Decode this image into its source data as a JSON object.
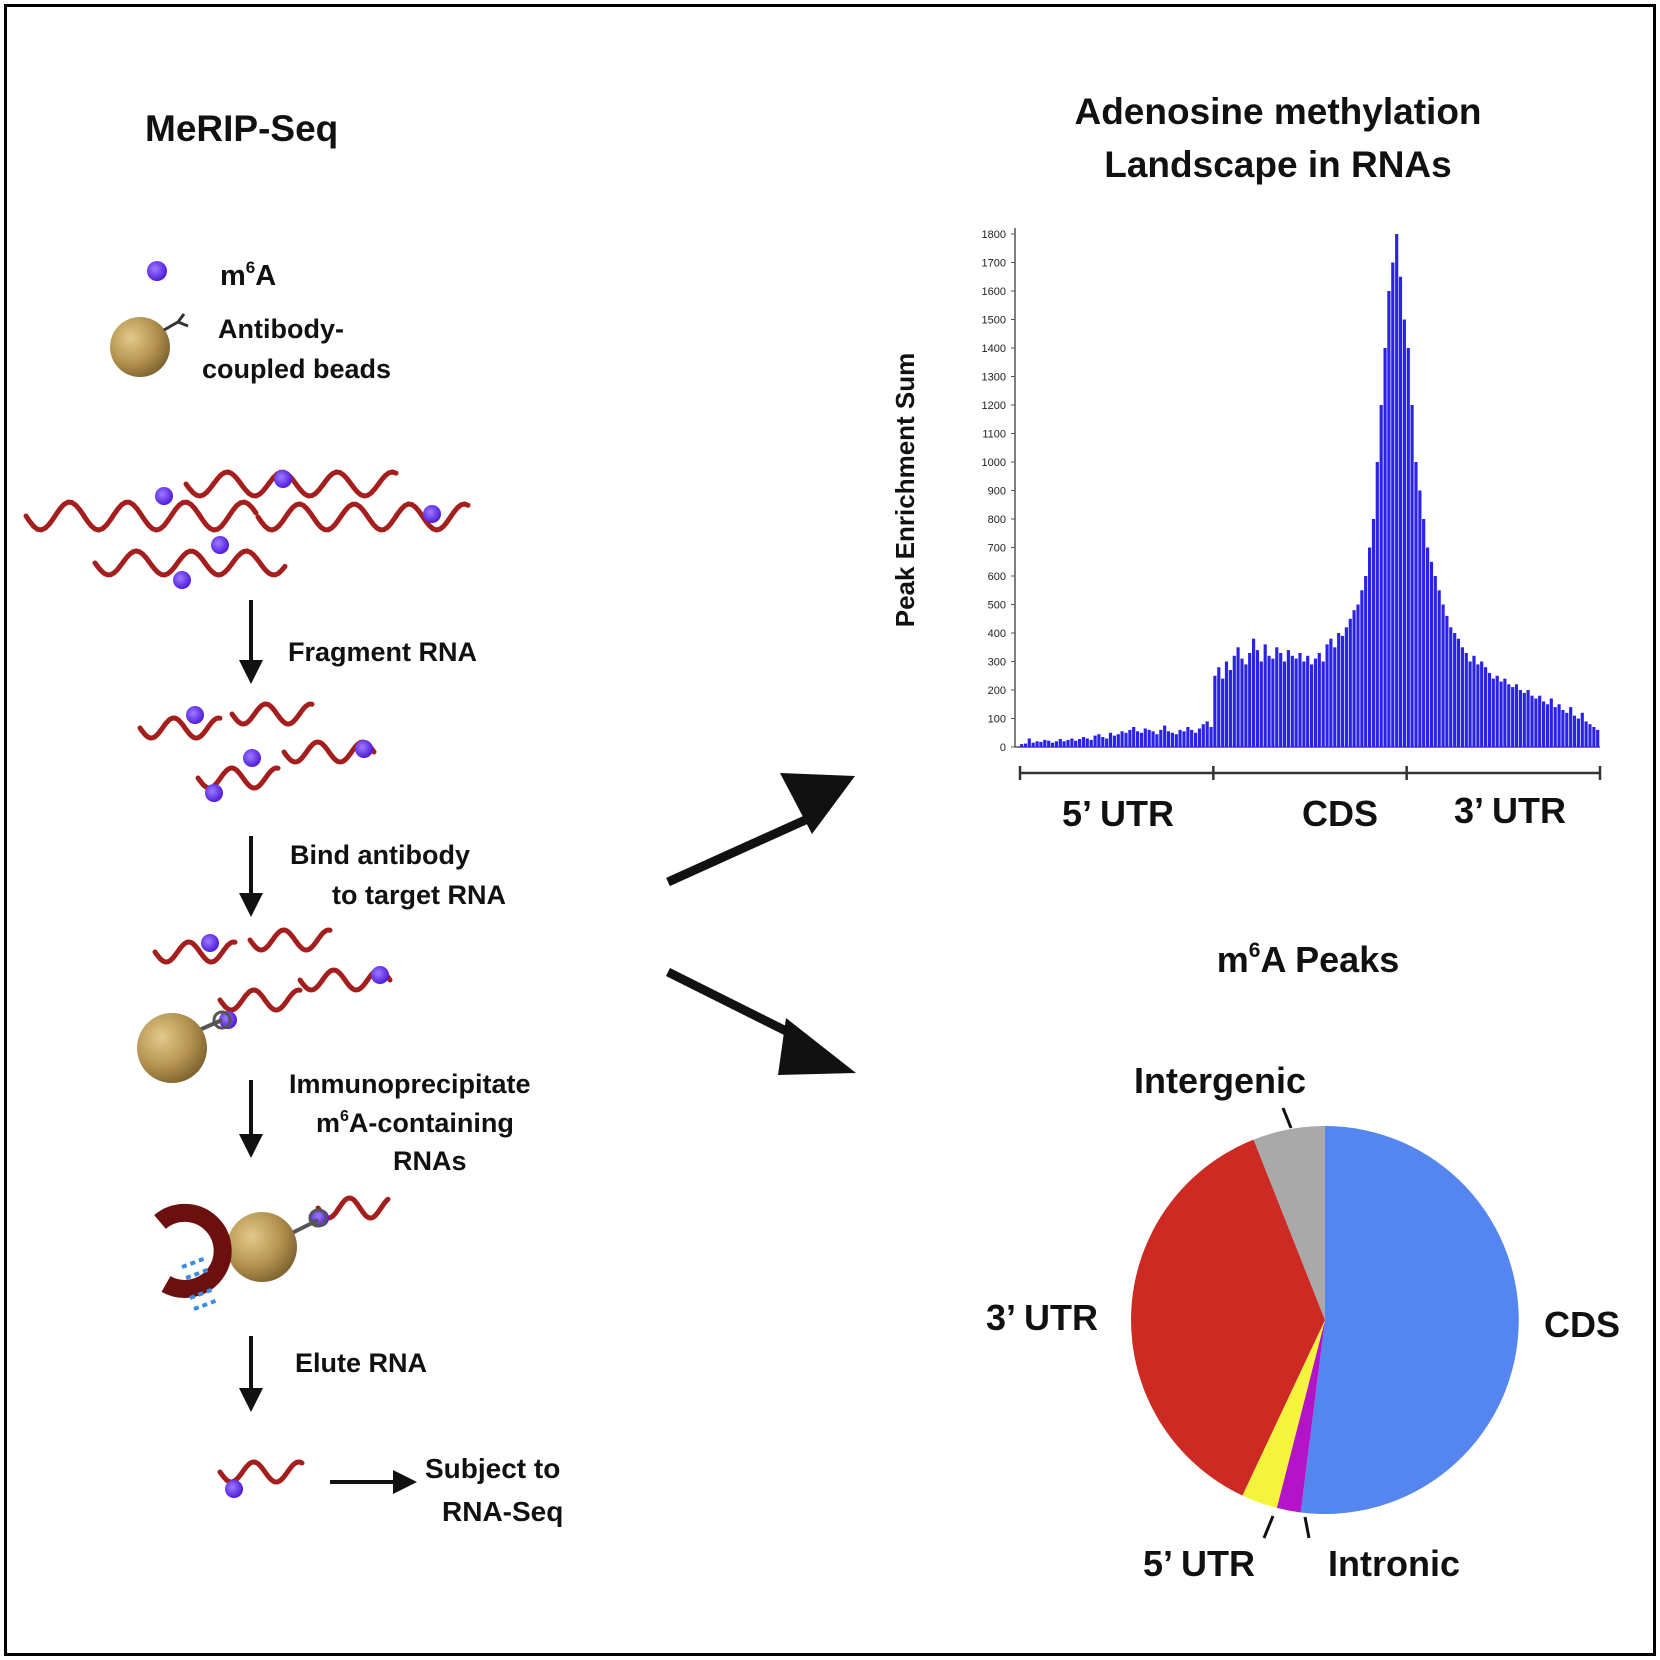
{
  "left_panel": {
    "title": "MeRIP-Seq",
    "legend": {
      "m6a_prefix": "m",
      "m6a_sup": "6",
      "m6a_suffix": "A",
      "beads_line1": "Antibody-",
      "beads_line2": "coupled beads"
    },
    "steps": {
      "fragment": "Fragment RNA",
      "bind_line1": "Bind antibody",
      "bind_line2": "to target RNA",
      "ip_line1": "Immunoprecipitate",
      "ip_line2_prefix": "m",
      "ip_line2_sup": "6",
      "ip_line2_suffix": "A-containing",
      "ip_line3": "RNAs",
      "elute": "Elute RNA",
      "subject_line1": "Subject to",
      "subject_line2": "RNA-Seq"
    }
  },
  "right_top": {
    "title_line1": "Adenosine methylation",
    "title_line2": "Landscape in RNAs",
    "region_labels": [
      "5’ UTR",
      "CDS",
      "3’ UTR"
    ]
  },
  "right_bottom": {
    "title_prefix": "m",
    "title_sup": "6",
    "title_suffix": "A Peaks"
  },
  "colors": {
    "rna": "#a51e1e",
    "m6a": "#6a2bf0",
    "bead": "#b49350",
    "bar": "#2a22e6",
    "magnet": "#6b0f0f"
  },
  "chart_data": [
    {
      "type": "bar",
      "title": "",
      "xlabel": "",
      "ylabel": "Peak Enrichment Sum",
      "ylim": [
        0,
        1800
      ],
      "yticks": [
        0,
        100,
        200,
        300,
        400,
        500,
        600,
        700,
        800,
        900,
        1000,
        1100,
        1200,
        1300,
        1400,
        1500,
        1600,
        1700,
        1800
      ],
      "regions": [
        "5’ UTR",
        "CDS",
        "3’ UTR"
      ],
      "grid": false,
      "x": [
        0.0,
        0.02,
        0.04,
        0.06,
        0.08,
        0.1,
        0.12,
        0.14,
        0.16,
        0.18,
        0.2,
        0.22,
        0.24,
        0.26,
        0.28,
        0.3,
        0.32,
        0.34,
        0.36,
        0.38,
        0.4,
        0.42,
        0.44,
        0.46,
        0.48,
        0.5,
        0.52,
        0.54,
        0.56,
        0.58,
        0.6,
        0.62,
        0.64,
        0.66,
        0.68,
        0.7,
        0.72,
        0.74,
        0.76,
        0.78,
        0.8,
        0.82,
        0.84,
        0.86,
        0.88,
        0.9,
        0.92,
        0.94,
        0.96,
        0.98,
        1.0,
        1.02,
        1.04,
        1.06,
        1.08,
        1.1,
        1.12,
        1.14,
        1.16,
        1.18,
        1.2,
        1.22,
        1.24,
        1.26,
        1.28,
        1.3,
        1.32,
        1.34,
        1.36,
        1.38,
        1.4,
        1.42,
        1.44,
        1.46,
        1.48,
        1.5,
        1.52,
        1.54,
        1.56,
        1.58,
        1.6,
        1.62,
        1.64,
        1.66,
        1.68,
        1.7,
        1.72,
        1.74,
        1.76,
        1.78,
        1.8,
        1.82,
        1.84,
        1.86,
        1.88,
        1.9,
        1.92,
        1.94,
        1.96,
        1.98,
        2.0,
        2.02,
        2.04,
        2.06,
        2.08,
        2.1,
        2.12,
        2.14,
        2.16,
        2.18,
        2.2,
        2.22,
        2.24,
        2.26,
        2.28,
        2.3,
        2.32,
        2.34,
        2.36,
        2.38,
        2.4,
        2.42,
        2.44,
        2.46,
        2.48,
        2.5,
        2.52,
        2.54,
        2.56,
        2.58,
        2.6,
        2.62,
        2.64,
        2.66,
        2.68,
        2.7,
        2.72,
        2.74,
        2.76,
        2.78,
        2.8,
        2.82,
        2.84,
        2.86,
        2.88,
        2.9,
        2.92,
        2.94,
        2.96,
        2.98
      ],
      "values": [
        10,
        12,
        30,
        15,
        20,
        18,
        25,
        22,
        15,
        20,
        28,
        20,
        25,
        30,
        22,
        28,
        35,
        30,
        25,
        40,
        45,
        35,
        30,
        50,
        40,
        45,
        55,
        50,
        60,
        70,
        55,
        50,
        65,
        60,
        55,
        45,
        60,
        75,
        55,
        50,
        45,
        60,
        55,
        70,
        60,
        50,
        65,
        80,
        90,
        70,
        250,
        280,
        240,
        300,
        270,
        320,
        350,
        310,
        290,
        330,
        380,
        340,
        300,
        360,
        320,
        310,
        350,
        330,
        300,
        340,
        320,
        310,
        330,
        300,
        320,
        290,
        310,
        330,
        300,
        360,
        380,
        350,
        400,
        390,
        420,
        450,
        480,
        500,
        550,
        600,
        700,
        800,
        1000,
        1200,
        1400,
        1600,
        1700,
        1800,
        1650,
        1500,
        1400,
        1200,
        1000,
        900,
        800,
        700,
        650,
        600,
        550,
        500,
        460,
        420,
        400,
        380,
        350,
        330,
        300,
        320,
        290,
        300,
        280,
        260,
        240,
        250,
        230,
        240,
        220,
        210,
        220,
        200,
        190,
        200,
        180,
        170,
        180,
        160,
        150,
        170,
        140,
        150,
        130,
        120,
        140,
        110,
        100,
        120,
        90,
        80,
        70,
        60
      ]
    },
    {
      "type": "pie",
      "title": "",
      "labels": [
        "CDS",
        "Intronic",
        "5’ UTR",
        "3’ UTR",
        "Intergenic"
      ],
      "values": [
        52,
        2,
        3,
        37,
        6
      ],
      "colors": [
        "#5585ee",
        "#b414c8",
        "#f4f43c",
        "#cc2a22",
        "#a9a9a9"
      ]
    }
  ]
}
